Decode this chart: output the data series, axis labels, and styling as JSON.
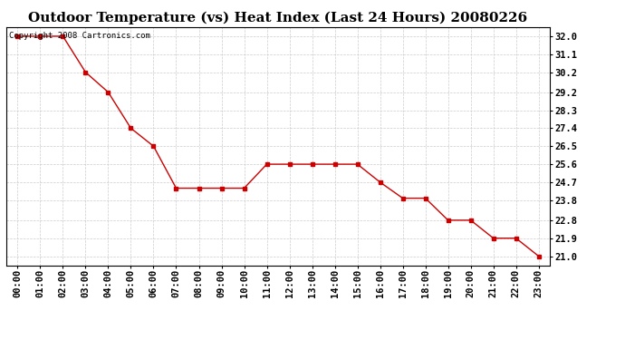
{
  "title": "Outdoor Temperature (vs) Heat Index (Last 24 Hours) 20080226",
  "copyright_text": "Copyright 2008 Cartronics.com",
  "x_labels": [
    "00:00",
    "01:00",
    "02:00",
    "03:00",
    "04:00",
    "05:00",
    "06:00",
    "07:00",
    "08:00",
    "09:00",
    "10:00",
    "11:00",
    "12:00",
    "13:00",
    "14:00",
    "15:00",
    "16:00",
    "17:00",
    "18:00",
    "19:00",
    "20:00",
    "21:00",
    "22:00",
    "23:00"
  ],
  "y_values": [
    32.0,
    32.0,
    32.0,
    30.2,
    29.2,
    27.4,
    26.5,
    24.4,
    24.4,
    24.4,
    24.4,
    25.6,
    25.6,
    25.6,
    25.6,
    25.6,
    24.7,
    23.9,
    23.9,
    22.8,
    22.8,
    21.9,
    21.9,
    21.0
  ],
  "yticks": [
    21.0,
    21.9,
    22.8,
    23.8,
    24.7,
    25.6,
    26.5,
    27.4,
    28.3,
    29.2,
    30.2,
    31.1,
    32.0
  ],
  "ylim_min": 20.55,
  "ylim_max": 32.45,
  "line_color": "#cc0000",
  "marker": "s",
  "marker_size": 2.5,
  "grid_color": "#cccccc",
  "background_color": "#ffffff",
  "title_fontsize": 11,
  "tick_fontsize": 7.5,
  "copyright_fontsize": 6.5
}
